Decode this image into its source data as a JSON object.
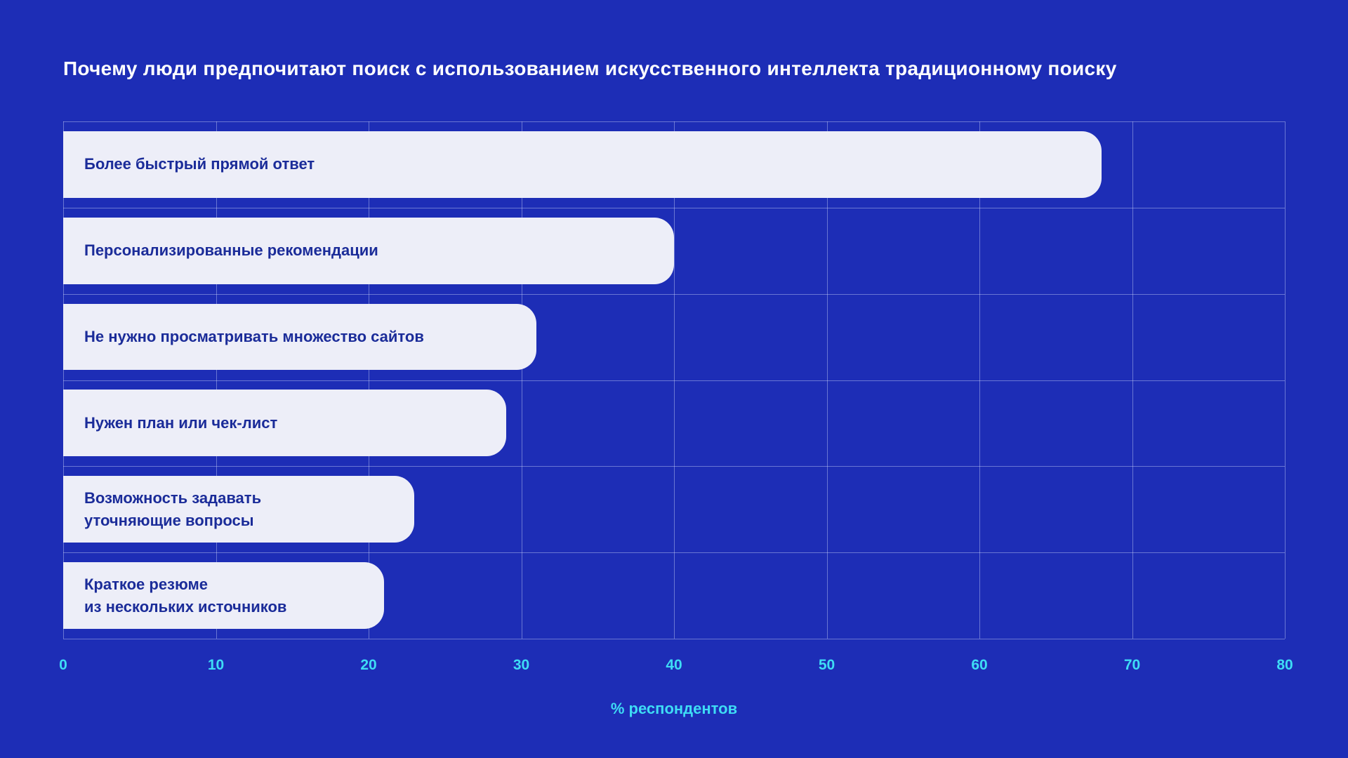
{
  "chart_data": {
    "type": "bar",
    "orientation": "horizontal",
    "title": "Почему люди предпочитают поиск с использованием искусственного интеллекта традиционному поиску",
    "xlabel": "% респондентов",
    "xlim": [
      0,
      80
    ],
    "xticks": [
      0,
      10,
      20,
      30,
      40,
      50,
      60,
      70,
      80
    ],
    "grid": true,
    "legend": false,
    "categories": [
      [
        "Более быстрый прямой ответ"
      ],
      [
        "Персонализированные рекомендации"
      ],
      [
        "Не нужно просматривать множество сайтов"
      ],
      [
        "Нужен план или чек-лист"
      ],
      [
        "Возможность задавать",
        "уточняющие вопросы"
      ],
      [
        "Краткое резюме",
        "из нескольких источников"
      ]
    ],
    "values": [
      68,
      40,
      31,
      29,
      23,
      21
    ],
    "colors": {
      "background": "#1D2DB6",
      "bar_fill": "#EDEEF8",
      "bar_label": "#1B2C99",
      "axis_text": "#3EDCF5",
      "title_text": "#FFFFFF",
      "gridline": "#DCE4FF66"
    }
  }
}
